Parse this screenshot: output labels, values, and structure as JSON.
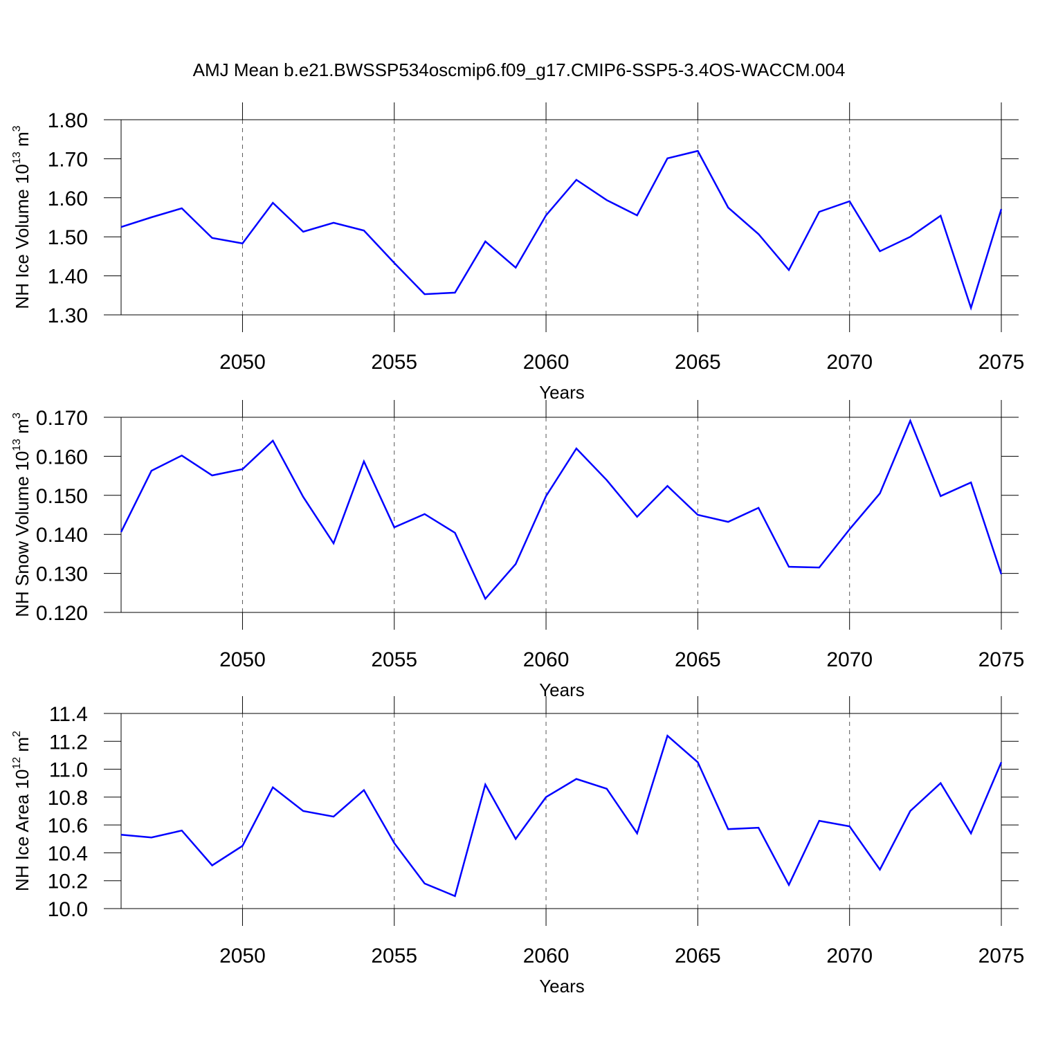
{
  "chart_data": [
    {
      "type": "line",
      "title": "AMJ Mean b.e21.BWSSP534oscmip6.f09_g17.CMIP6-SSP5-3.4OS-WACCM.004",
      "ylabel_parts": [
        "NH Ice Volume 10",
        "13",
        " m",
        "3"
      ],
      "xlabel": "Years",
      "x": [
        2046,
        2047,
        2048,
        2049,
        2050,
        2051,
        2052,
        2053,
        2054,
        2055,
        2056,
        2057,
        2058,
        2059,
        2060,
        2061,
        2062,
        2063,
        2064,
        2065,
        2066,
        2067,
        2068,
        2069,
        2070,
        2071,
        2072,
        2073,
        2074,
        2075
      ],
      "values": [
        1.525,
        1.55,
        1.573,
        1.497,
        1.483,
        1.587,
        1.513,
        1.536,
        1.516,
        1.433,
        1.353,
        1.357,
        1.488,
        1.421,
        1.555,
        1.646,
        1.594,
        1.555,
        1.701,
        1.72,
        1.575,
        1.507,
        1.415,
        1.564,
        1.591,
        1.463,
        1.5,
        1.554,
        1.318,
        1.571
      ],
      "color": "#0000ff",
      "xlim": [
        2046,
        2075
      ],
      "xticks": [
        2050,
        2055,
        2060,
        2065,
        2070,
        2075
      ],
      "ylim": [
        1.3,
        1.8
      ],
      "yticks": [
        {
          "value": 1.3,
          "label": "1.30"
        },
        {
          "value": 1.4,
          "label": "1.40"
        },
        {
          "value": 1.5,
          "label": "1.50"
        },
        {
          "value": 1.6,
          "label": "1.60"
        },
        {
          "value": 1.7,
          "label": "1.70"
        },
        {
          "value": 1.8,
          "label": "1.80"
        }
      ],
      "grid": true
    },
    {
      "type": "line",
      "ylabel_parts": [
        "NH Snow Volume 10",
        "13",
        " m",
        "3"
      ],
      "xlabel": "Years",
      "x": [
        2046,
        2047,
        2048,
        2049,
        2050,
        2051,
        2052,
        2053,
        2054,
        2055,
        2056,
        2057,
        2058,
        2059,
        2060,
        2061,
        2062,
        2063,
        2064,
        2065,
        2066,
        2067,
        2068,
        2069,
        2070,
        2071,
        2072,
        2073,
        2074,
        2075
      ],
      "values": [
        0.1406,
        0.1563,
        0.1602,
        0.1551,
        0.1567,
        0.164,
        0.1496,
        0.1377,
        0.1587,
        0.1418,
        0.1452,
        0.1404,
        0.1235,
        0.1324,
        0.1498,
        0.162,
        0.1539,
        0.1445,
        0.1524,
        0.145,
        0.1432,
        0.1468,
        0.1317,
        0.1315,
        0.1413,
        0.1505,
        0.1691,
        0.1498,
        0.1533,
        0.1298
      ],
      "color": "#0000ff",
      "xlim": [
        2046,
        2075
      ],
      "xticks": [
        2050,
        2055,
        2060,
        2065,
        2070,
        2075
      ],
      "ylim": [
        0.12,
        0.17
      ],
      "yticks": [
        {
          "value": 0.12,
          "label": "0.120"
        },
        {
          "value": 0.13,
          "label": "0.130"
        },
        {
          "value": 0.14,
          "label": "0.140"
        },
        {
          "value": 0.15,
          "label": "0.150"
        },
        {
          "value": 0.16,
          "label": "0.160"
        },
        {
          "value": 0.17,
          "label": "0.170"
        }
      ],
      "grid": true
    },
    {
      "type": "line",
      "ylabel_parts": [
        "NH Ice Area 10",
        "12",
        " m",
        "2"
      ],
      "xlabel": "Years",
      "x": [
        2046,
        2047,
        2048,
        2049,
        2050,
        2051,
        2052,
        2053,
        2054,
        2055,
        2056,
        2057,
        2058,
        2059,
        2060,
        2061,
        2062,
        2063,
        2064,
        2065,
        2066,
        2067,
        2068,
        2069,
        2070,
        2071,
        2072,
        2073,
        2074,
        2075
      ],
      "values": [
        10.53,
        10.51,
        10.56,
        10.31,
        10.45,
        10.87,
        10.7,
        10.66,
        10.85,
        10.47,
        10.18,
        10.09,
        10.89,
        10.5,
        10.8,
        10.93,
        10.86,
        10.54,
        11.24,
        11.05,
        10.57,
        10.58,
        10.17,
        10.63,
        10.59,
        10.28,
        10.7,
        10.9,
        10.54,
        11.05
      ],
      "color": "#0000ff",
      "xlim": [
        2046,
        2075
      ],
      "xticks": [
        2050,
        2055,
        2060,
        2065,
        2070,
        2075
      ],
      "ylim": [
        10.0,
        11.4
      ],
      "yticks": [
        {
          "value": 10.0,
          "label": "10.0"
        },
        10.2,
        10.4,
        10.6,
        10.8,
        {
          "value": 11.0,
          "label": "11.0"
        },
        11.2,
        11.4
      ],
      "grid": true
    }
  ]
}
